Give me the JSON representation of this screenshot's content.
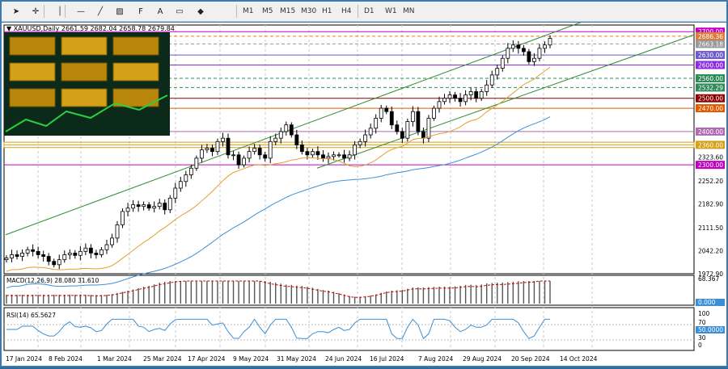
{
  "toolbar": {
    "tools": [
      {
        "name": "cursor-icon",
        "glyph": "➤"
      },
      {
        "name": "crosshair-icon",
        "glyph": "✛"
      },
      {
        "name": "vertical-line-icon",
        "glyph": "│"
      },
      {
        "name": "horizontal-line-icon",
        "glyph": "—"
      },
      {
        "name": "trendline-icon",
        "glyph": "╱"
      },
      {
        "name": "channel-icon",
        "glyph": "▨"
      },
      {
        "name": "fibonacci-icon",
        "glyph": "F"
      },
      {
        "name": "text-icon",
        "glyph": "A"
      },
      {
        "name": "label-icon",
        "glyph": "▭"
      },
      {
        "name": "shapes-icon",
        "glyph": "◆"
      }
    ],
    "timeframes": [
      "M1",
      "M5",
      "M15",
      "M30",
      "H1",
      "H4",
      "D1",
      "W1",
      "MN"
    ]
  },
  "chart_header": {
    "symbol_line": "▼ XAUUSD,Daily  2661.59 2682.04 2658.78 2679.84"
  },
  "price_axis": {
    "ticks": [
      "2700.00",
      "2686.36",
      "2663.18",
      "2630.00",
      "2600.00",
      "2560.00",
      "2532.29",
      "2500.00",
      "2470.00",
      "2400.00",
      "2360.00",
      "2323.60",
      "2300.00",
      "2252.20",
      "2182.90",
      "2111.50",
      "2042.20",
      "1972.90"
    ],
    "highlighted": [
      {
        "label": "2700.00",
        "color": "#c000c0"
      },
      {
        "label": "2686.36",
        "color": "#e07b39"
      },
      {
        "label": "2663.18",
        "color": "#999999"
      },
      {
        "label": "2630.00",
        "color": "#6a5acd"
      },
      {
        "label": "2600.00",
        "color": "#8a2be2"
      },
      {
        "label": "2560.00",
        "color": "#2e8b57"
      },
      {
        "label": "2532.29",
        "color": "#2e8b57"
      },
      {
        "label": "2500.00",
        "color": "#8b0000"
      },
      {
        "label": "2470.00",
        "color": "#e05a00"
      },
      {
        "label": "2400.00",
        "color": "#b06ab0"
      },
      {
        "label": "2360.00",
        "color": "#d4a017"
      },
      {
        "label": "2300.00",
        "color": "#c000c0"
      }
    ]
  },
  "date_axis": {
    "labels": [
      "17 Jan 2024",
      "8 Feb 2024",
      "1 Mar 2024",
      "25 Mar 2024",
      "17 Apr 2024",
      "9 May 2024",
      "31 May 2024",
      "24 Jun 2024",
      "16 Jul 2024",
      "7 Aug 2024",
      "29 Aug 2024",
      "20 Sep 2024",
      "14 Oct 2024"
    ]
  },
  "macd": {
    "label": "MACD(12,26,9) 28.080 31.610",
    "scale_top": "68.367",
    "scale_zero": "0.000"
  },
  "rsi": {
    "label": "RSI(14) 65.5627",
    "scale": [
      "100",
      "70",
      "50.0000",
      "30",
      "0"
    ]
  },
  "chart_data": {
    "type": "candlestick",
    "symbol": "XAUUSD",
    "timeframe": "Daily",
    "last_bar": {
      "open": 2661.59,
      "high": 2682.04,
      "low": 2658.78,
      "close": 2679.84
    },
    "closes": [
      2020,
      2030,
      2025,
      2035,
      2045,
      2040,
      2030,
      2025,
      2010,
      2000,
      2015,
      2030,
      2035,
      2028,
      2040,
      2050,
      2035,
      2030,
      2045,
      2060,
      2080,
      2120,
      2160,
      2170,
      2180,
      2175,
      2180,
      2170,
      2175,
      2185,
      2165,
      2200,
      2230,
      2250,
      2270,
      2290,
      2320,
      2345,
      2350,
      2340,
      2370,
      2380,
      2330,
      2330,
      2300,
      2320,
      2340,
      2350,
      2330,
      2320,
      2370,
      2380,
      2400,
      2420,
      2390,
      2360,
      2340,
      2330,
      2340,
      2330,
      2320,
      2325,
      2330,
      2330,
      2320,
      2330,
      2360,
      2370,
      2390,
      2410,
      2440,
      2470,
      2460,
      2420,
      2400,
      2380,
      2430,
      2460,
      2400,
      2380,
      2440,
      2470,
      2490,
      2500,
      2510,
      2500,
      2490,
      2510,
      2520,
      2500,
      2520,
      2540,
      2570,
      2590,
      2620,
      2650,
      2660,
      2650,
      2640,
      2610,
      2620,
      2650,
      2660,
      2680
    ],
    "ma_slow_ylim": [
      1972.9,
      2720
    ]
  }
}
